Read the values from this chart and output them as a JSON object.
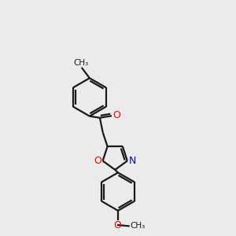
{
  "background_color": "#ebebeb",
  "bond_color": "#1a1a1a",
  "oxygen_color": "#ff0000",
  "nitrogen_color": "#0000cc",
  "line_width": 1.6,
  "figsize": [
    3.0,
    3.0
  ],
  "dpi": 100,
  "xlim": [
    0,
    10
  ],
  "ylim": [
    0,
    14
  ]
}
